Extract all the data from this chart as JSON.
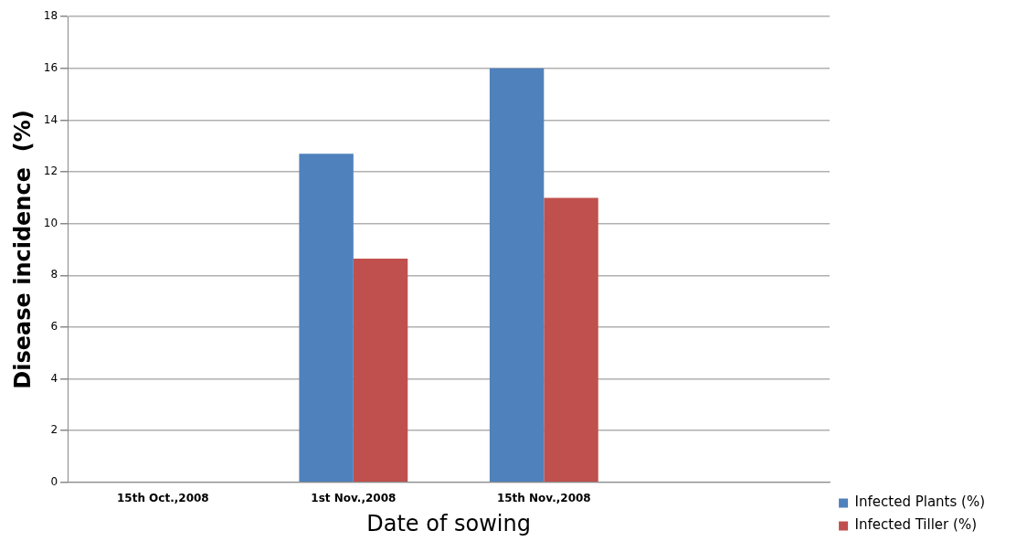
{
  "chart_data": {
    "type": "bar",
    "xlabel": "Date of sowing",
    "ylabel": "Disease incidence  (%)",
    "categories": [
      "15th Oct.,2008",
      "1st Nov.,2008",
      "15th Nov.,2008",
      null
    ],
    "series": [
      {
        "name": "Infected Plants (%)",
        "color": "#4f81bd",
        "values": [
          0,
          12.7,
          16,
          null
        ]
      },
      {
        "name": "Infected Tiller (%)",
        "color": "#c0504d",
        "values": [
          0,
          8.65,
          11,
          null
        ]
      }
    ],
    "ylim": [
      0,
      18
    ],
    "yticks": [
      0,
      2,
      4,
      6,
      8,
      10,
      12,
      14,
      16,
      18
    ],
    "grid": "y",
    "legend": "right"
  }
}
